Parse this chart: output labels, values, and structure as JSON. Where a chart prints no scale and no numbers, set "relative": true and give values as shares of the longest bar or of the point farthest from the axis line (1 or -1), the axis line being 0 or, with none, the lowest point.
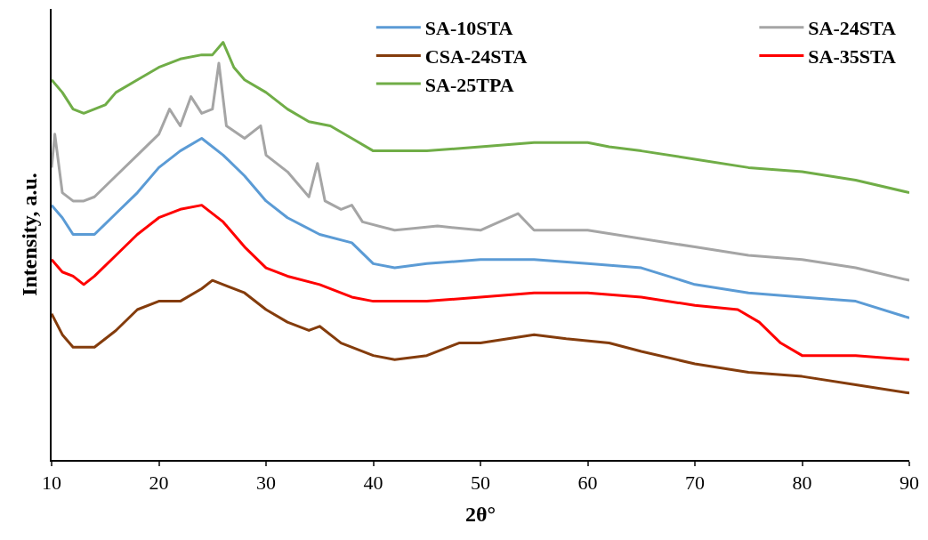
{
  "chart_data": {
    "type": "line",
    "relative": true,
    "xlabel": "2θ°",
    "ylabel": "Intensity, a.u.",
    "xlim": [
      10,
      90
    ],
    "xticks": [
      10,
      20,
      30,
      40,
      50,
      60,
      70,
      80,
      90
    ],
    "legend": "top right",
    "marker": "none",
    "line_style": "solid",
    "series": [
      {
        "name": "SA-10STA",
        "color": "#5b9bd5",
        "x": [
          10,
          11,
          12,
          13,
          14,
          16,
          18,
          20,
          22,
          24,
          26,
          28,
          30,
          32,
          35,
          38,
          40,
          42,
          45,
          50,
          55,
          60,
          65,
          70,
          75,
          80,
          85,
          90
        ],
        "values": [
          0.61,
          0.58,
          0.54,
          0.54,
          0.54,
          0.59,
          0.64,
          0.7,
          0.74,
          0.77,
          0.73,
          0.68,
          0.62,
          0.58,
          0.54,
          0.52,
          0.47,
          0.46,
          0.47,
          0.48,
          0.48,
          0.47,
          0.46,
          0.42,
          0.4,
          0.39,
          0.38,
          0.34
        ]
      },
      {
        "name": "SA-24STA",
        "color": "#a5a5a5",
        "x": [
          10,
          10.3,
          11,
          12,
          13,
          14,
          16,
          18,
          20,
          21,
          22,
          23,
          24,
          25,
          25.6,
          26.3,
          28,
          29.5,
          30,
          32,
          34,
          34.8,
          35.5,
          37,
          38,
          39,
          42,
          46,
          50,
          53.5,
          55,
          60,
          65,
          70,
          75,
          80,
          85,
          90
        ],
        "values": [
          0.7,
          0.78,
          0.64,
          0.62,
          0.62,
          0.63,
          0.68,
          0.73,
          0.78,
          0.84,
          0.8,
          0.87,
          0.83,
          0.84,
          0.95,
          0.8,
          0.77,
          0.8,
          0.73,
          0.69,
          0.63,
          0.71,
          0.62,
          0.6,
          0.61,
          0.57,
          0.55,
          0.56,
          0.55,
          0.59,
          0.55,
          0.55,
          0.53,
          0.51,
          0.49,
          0.48,
          0.46,
          0.43
        ]
      },
      {
        "name": "CSA-24STA",
        "color": "#843c0c",
        "x": [
          10,
          11,
          12,
          13,
          14,
          16,
          18,
          20,
          22,
          24,
          25,
          26,
          28,
          30,
          32,
          34,
          35,
          37,
          40,
          42,
          45,
          48,
          50,
          55,
          58,
          62,
          65,
          70,
          75,
          80,
          85,
          90
        ],
        "values": [
          0.35,
          0.3,
          0.27,
          0.27,
          0.27,
          0.31,
          0.36,
          0.38,
          0.38,
          0.41,
          0.43,
          0.42,
          0.4,
          0.36,
          0.33,
          0.31,
          0.32,
          0.28,
          0.25,
          0.24,
          0.25,
          0.28,
          0.28,
          0.3,
          0.29,
          0.28,
          0.26,
          0.23,
          0.21,
          0.2,
          0.18,
          0.16
        ]
      },
      {
        "name": "SA-35STA",
        "color": "#ff0000",
        "x": [
          10,
          11,
          12,
          13,
          14,
          16,
          18,
          20,
          22,
          24,
          26,
          28,
          30,
          32,
          35,
          38,
          40,
          45,
          50,
          55,
          60,
          65,
          70,
          74,
          76,
          78,
          80,
          85,
          90
        ],
        "values": [
          0.48,
          0.45,
          0.44,
          0.42,
          0.44,
          0.49,
          0.54,
          0.58,
          0.6,
          0.61,
          0.57,
          0.51,
          0.46,
          0.44,
          0.42,
          0.39,
          0.38,
          0.38,
          0.39,
          0.4,
          0.4,
          0.39,
          0.37,
          0.36,
          0.33,
          0.28,
          0.25,
          0.25,
          0.24
        ]
      },
      {
        "name": "SA-25TPA",
        "color": "#70ad47",
        "x": [
          10,
          11,
          12,
          13,
          14,
          15,
          16,
          18,
          20,
          22,
          24,
          25,
          26,
          27,
          28,
          30,
          32,
          34,
          36,
          38,
          40,
          42,
          45,
          50,
          55,
          60,
          62,
          65,
          70,
          75,
          80,
          85,
          90
        ],
        "values": [
          0.91,
          0.88,
          0.84,
          0.83,
          0.84,
          0.85,
          0.88,
          0.91,
          0.94,
          0.96,
          0.97,
          0.97,
          1.0,
          0.94,
          0.91,
          0.88,
          0.84,
          0.81,
          0.8,
          0.77,
          0.74,
          0.74,
          0.74,
          0.75,
          0.76,
          0.76,
          0.75,
          0.74,
          0.72,
          0.7,
          0.69,
          0.67,
          0.64
        ]
      }
    ]
  }
}
